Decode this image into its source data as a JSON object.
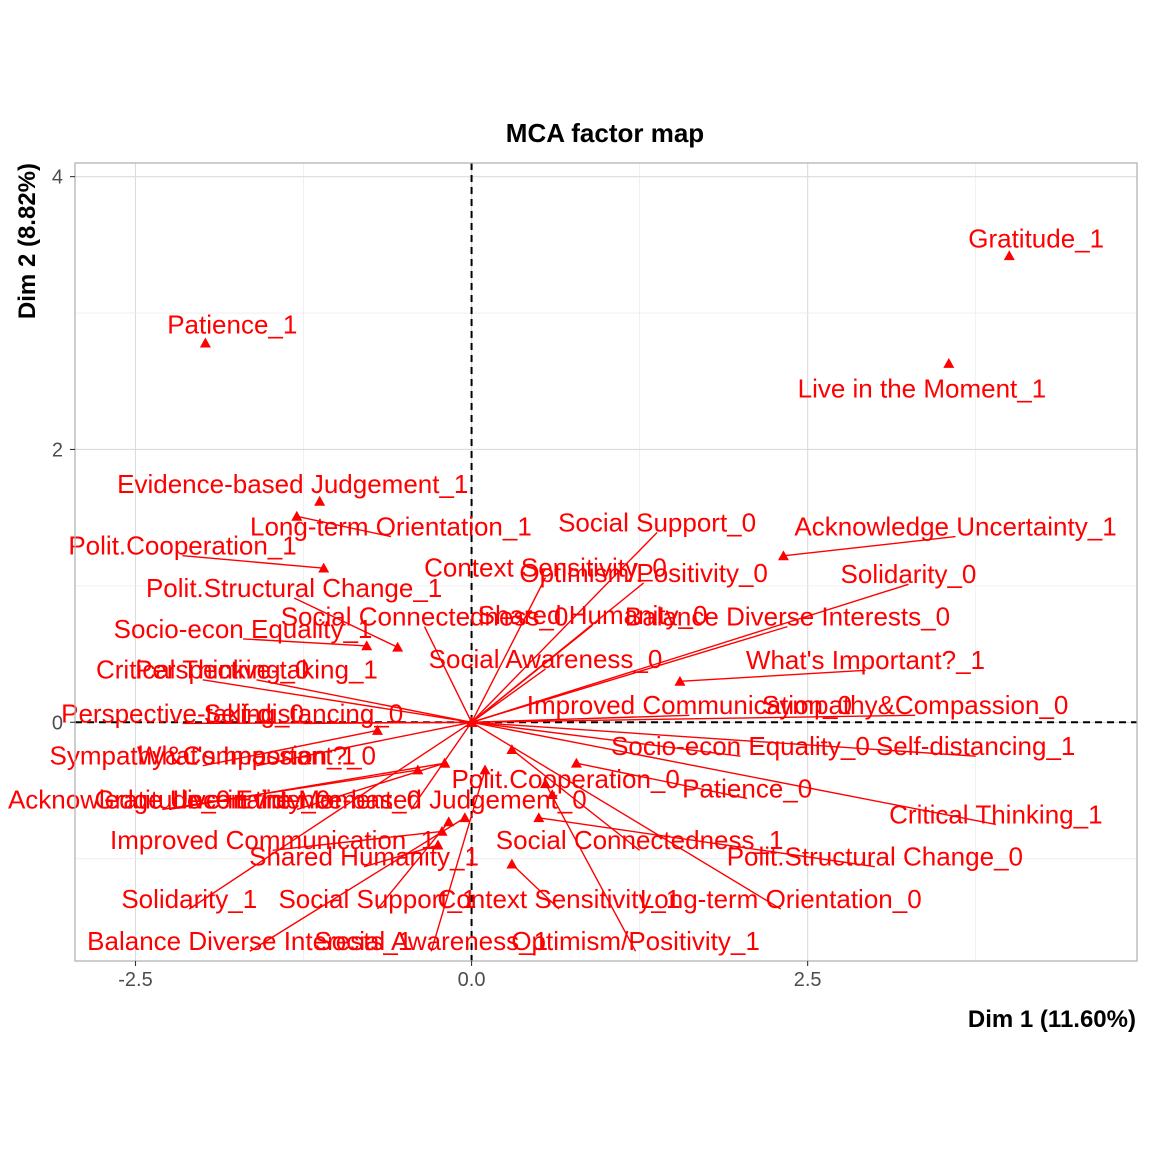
{
  "chart_data": {
    "type": "scatter",
    "title": "MCA factor map",
    "xlabel": "Dim 1 (11.60%)",
    "ylabel": "Dim 2 (8.82%)",
    "xlim": [
      -2.95,
      4.95
    ],
    "ylim": [
      -1.75,
      4.1
    ],
    "xticks": [
      {
        "v": -2.5,
        "label": "-2.5"
      },
      {
        "v": 0,
        "label": "0.0"
      },
      {
        "v": 2.5,
        "label": "2.5"
      }
    ],
    "yticks": [
      {
        "v": 0,
        "label": "0"
      },
      {
        "v": 2,
        "label": "2"
      },
      {
        "v": 4,
        "label": "4"
      }
    ],
    "grid": true,
    "reference_lines": {
      "x": 0,
      "y": 0,
      "style": "dashed"
    },
    "color": "#ff0000",
    "points": [
      {
        "name": "Gratitude_1",
        "x": 4.0,
        "y": 3.42,
        "lx": 4.2,
        "ly": 3.53
      },
      {
        "name": "Patience_1",
        "x": -1.98,
        "y": 2.78,
        "lx": -1.78,
        "ly": 2.9
      },
      {
        "name": "Live in the Moment_1",
        "x": 3.55,
        "y": 2.63,
        "lx": 3.35,
        "ly": 2.43
      },
      {
        "name": "Evidence-based Judgement_1",
        "x": -1.13,
        "y": 1.62,
        "lx": -1.33,
        "ly": 1.73
      },
      {
        "name": "Long-term Orientation_1",
        "x": -1.3,
        "y": 1.51,
        "lx": -0.6,
        "ly": 1.42
      },
      {
        "name": "Polit.Cooperation_1",
        "x": -1.1,
        "y": 1.13,
        "lx": -2.15,
        "ly": 1.28
      },
      {
        "name": "Acknowledge Uncertainty_1",
        "x": 2.32,
        "y": 1.22,
        "lx": 3.6,
        "ly": 1.42
      },
      {
        "name": "Social Support_0",
        "x": 0.0,
        "y": 0.0,
        "lx": 1.38,
        "ly": 1.45
      },
      {
        "name": "Context Sensitivity_0",
        "x": 0.0,
        "y": 0.0,
        "lx": 0.55,
        "ly": 1.12
      },
      {
        "name": "Optimism/Positivity_0",
        "x": 0.0,
        "y": 0.0,
        "lx": 1.28,
        "ly": 1.08
      },
      {
        "name": "Solidarity_0",
        "x": 0.0,
        "y": 0.0,
        "lx": 3.25,
        "ly": 1.07
      },
      {
        "name": "Polit.Structural Change_1",
        "x": -0.55,
        "y": 0.55,
        "lx": -1.32,
        "ly": 0.97
      },
      {
        "name": "Social Connectedness_0",
        "x": 0.0,
        "y": 0.0,
        "lx": -0.35,
        "ly": 0.76
      },
      {
        "name": "Shared Humanity_0",
        "x": 0.0,
        "y": 0.0,
        "lx": 0.9,
        "ly": 0.77
      },
      {
        "name": "Balance Diverse Interests_0",
        "x": 0.0,
        "y": 0.0,
        "lx": 2.35,
        "ly": 0.76
      },
      {
        "name": "Socio-econ Equality_1",
        "x": -0.78,
        "y": 0.56,
        "lx": -1.7,
        "ly": 0.67
      },
      {
        "name": "Social Awareness_0",
        "x": 0.0,
        "y": 0.0,
        "lx": 0.55,
        "ly": 0.45
      },
      {
        "name": "What's Important?_1",
        "x": 1.55,
        "y": 0.3,
        "lx": 2.93,
        "ly": 0.44
      },
      {
        "name": "Critical Thinking_0",
        "x": 0.0,
        "y": 0.0,
        "lx": -2.0,
        "ly": 0.37
      },
      {
        "name": "Perspective-taking_1",
        "x": 0.0,
        "y": 0.0,
        "lx": -1.6,
        "ly": 0.37
      },
      {
        "name": "Improved Communication_0",
        "x": 0.0,
        "y": 0.0,
        "lx": 1.62,
        "ly": 0.11
      },
      {
        "name": "Sympathy&Compassion_0",
        "x": 0.0,
        "y": 0.0,
        "lx": 3.3,
        "ly": 0.11
      },
      {
        "name": "Perspective-taking_0",
        "x": 0.0,
        "y": 0.0,
        "lx": -2.15,
        "ly": 0.05
      },
      {
        "name": "Self-distancing_0",
        "x": 0.0,
        "y": 0.0,
        "lx": -1.25,
        "ly": 0.05
      },
      {
        "name": "Socio-econ Equality_0",
        "x": 0.0,
        "y": 0.0,
        "lx": 2.0,
        "ly": -0.19
      },
      {
        "name": "Self-distancing_1",
        "x": 0.0,
        "y": 0.0,
        "lx": 3.75,
        "ly": -0.19
      },
      {
        "name": "Sympathy&Compassion_1",
        "x": -0.7,
        "y": -0.06,
        "lx": -2.0,
        "ly": -0.26
      },
      {
        "name": "What's Important?_0",
        "x": 0.0,
        "y": 0.0,
        "lx": -1.6,
        "ly": -0.26
      },
      {
        "name": "Polit.Cooperation_0",
        "x": 0.6,
        "y": -0.53,
        "lx": 0.7,
        "ly": -0.43
      },
      {
        "name": "Patience_0",
        "x": 0.78,
        "y": -0.3,
        "lx": 2.05,
        "ly": -0.5
      },
      {
        "name": "Acknowledge Uncertainty_0",
        "x": -0.2,
        "y": -0.3,
        "lx": -2.25,
        "ly": -0.58
      },
      {
        "name": "Gratitude_0",
        "x": -0.4,
        "y": -0.35,
        "lx": -2.3,
        "ly": -0.58
      },
      {
        "name": "Evidence-based Judgement_0",
        "x": 0.0,
        "y": 0.0,
        "lx": -0.45,
        "ly": -0.58
      },
      {
        "name": "Live in the Moment_0",
        "x": -0.2,
        "y": -0.3,
        "lx": -1.3,
        "ly": -0.58
      },
      {
        "name": "Critical Thinking_1",
        "x": 0.0,
        "y": 0.0,
        "lx": 3.9,
        "ly": -0.69
      },
      {
        "name": "Improved Communication_1",
        "x": -0.22,
        "y": -0.8,
        "lx": -1.48,
        "ly": -0.88
      },
      {
        "name": "Social Connectedness_1",
        "x": 0.3,
        "y": -0.2,
        "lx": 1.25,
        "ly": -0.88
      },
      {
        "name": "Shared Humanity_1",
        "x": -0.25,
        "y": -0.9,
        "lx": -0.8,
        "ly": -1.0
      },
      {
        "name": "Polit.Structural Change_0",
        "x": 0.5,
        "y": -0.7,
        "lx": 3.0,
        "ly": -1.0
      },
      {
        "name": "Solidarity_1",
        "x": 0.0,
        "y": 0.0,
        "lx": -2.1,
        "ly": -1.31
      },
      {
        "name": "Social Support_1",
        "x": -0.17,
        "y": -0.73,
        "lx": -0.7,
        "ly": -1.31
      },
      {
        "name": "Context Sensitivity_1",
        "x": 0.3,
        "y": -1.04,
        "lx": 0.65,
        "ly": -1.31
      },
      {
        "name": "Long-term Orientation_0",
        "x": 0.0,
        "y": 0.0,
        "lx": 2.3,
        "ly": -1.31
      },
      {
        "name": "Balance Diverse Interests_1",
        "x": -0.05,
        "y": -0.7,
        "lx": -1.65,
        "ly": -1.62
      },
      {
        "name": "Social Awareness_1",
        "x": 0.1,
        "y": -0.35,
        "lx": -0.3,
        "ly": -1.62
      },
      {
        "name": "Optimism/Positivity_1",
        "x": 0.55,
        "y": -0.45,
        "lx": 1.22,
        "ly": -1.62
      }
    ]
  }
}
